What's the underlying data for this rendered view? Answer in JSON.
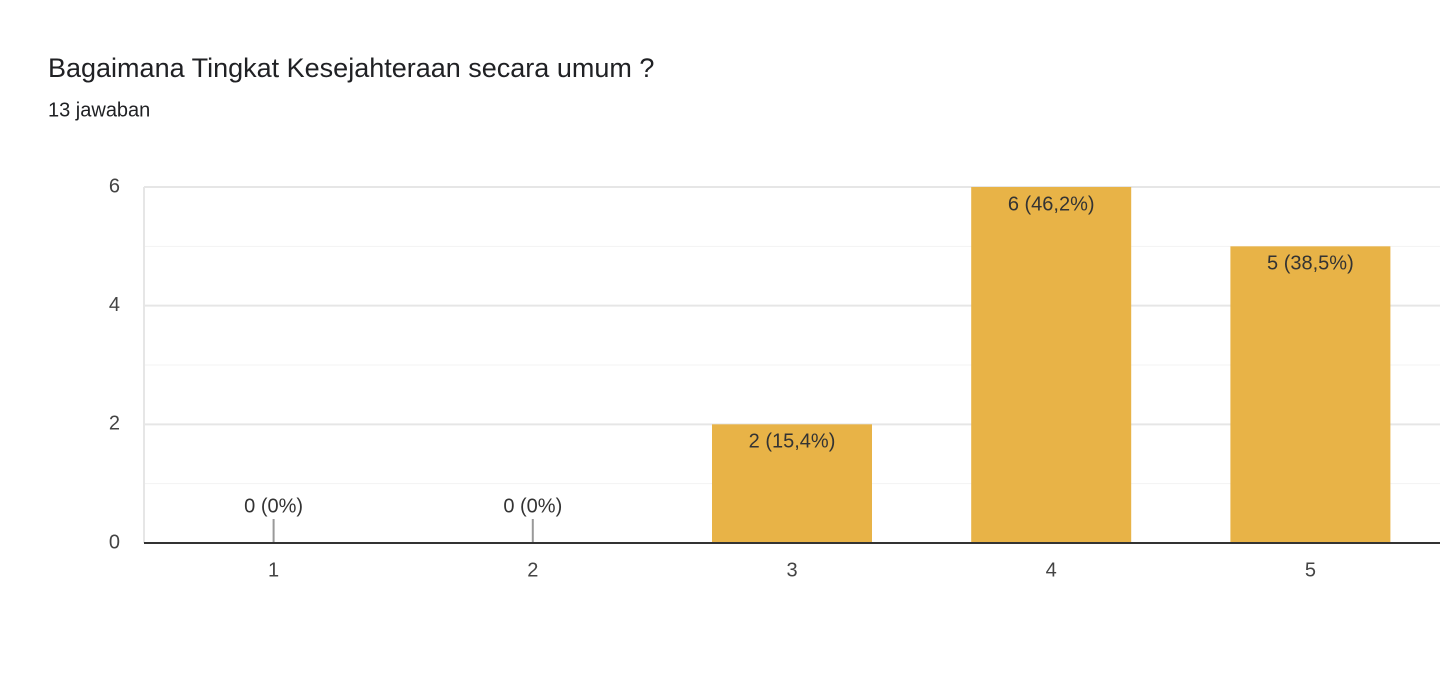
{
  "chart_data": {
    "type": "bar",
    "title": "Bagaimana Tingkat Kesejahteraan secara umum ?",
    "subtitle": "13 jawaban",
    "categories": [
      "1",
      "2",
      "3",
      "4",
      "5"
    ],
    "values": [
      0,
      0,
      2,
      6,
      5
    ],
    "value_labels": [
      "0 (0%)",
      "0 (0%)",
      "2 (15,4%)",
      "6 (46,2%)",
      "5 (38,5%)"
    ],
    "color": "#e8b347",
    "ylim": [
      0,
      6
    ],
    "yticks": [
      0,
      2,
      4,
      6
    ],
    "yminor": [
      1,
      3,
      5
    ],
    "grid": true
  }
}
